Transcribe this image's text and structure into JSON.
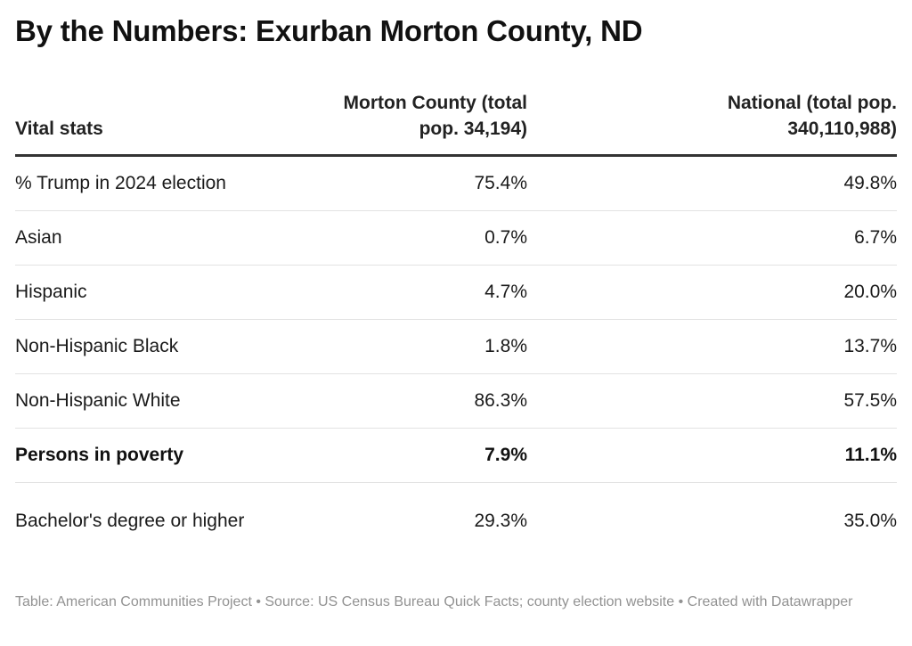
{
  "title": "By the Numbers: Exurban Morton County, ND",
  "footer": "Table: American Communities Project • Source: US Census Bureau Quick Facts; county election website • Created with Datawrapper",
  "chart_data": {
    "type": "table",
    "columns": [
      "Vital stats",
      "Morton County (total pop. 34,194)",
      "National (total pop. 340,110,988)"
    ],
    "rows": [
      {
        "label": "% Trump in 2024 election",
        "values": [
          "75.4%",
          "49.8%"
        ],
        "bold": false
      },
      {
        "label": "Asian",
        "values": [
          "0.7%",
          "6.7%"
        ],
        "bold": false
      },
      {
        "label": "Hispanic",
        "values": [
          "4.7%",
          "20.0%"
        ],
        "bold": false
      },
      {
        "label": "Non-Hispanic Black",
        "values": [
          "1.8%",
          "13.7%"
        ],
        "bold": false
      },
      {
        "label": "Non-Hispanic White",
        "values": [
          "86.3%",
          "57.5%"
        ],
        "bold": false
      },
      {
        "label": "Persons in poverty",
        "values": [
          "7.9%",
          "11.1%"
        ],
        "bold": true
      },
      {
        "label": "Bachelor's degree or higher",
        "values": [
          "29.3%",
          "35.0%"
        ],
        "bold": false
      }
    ]
  }
}
